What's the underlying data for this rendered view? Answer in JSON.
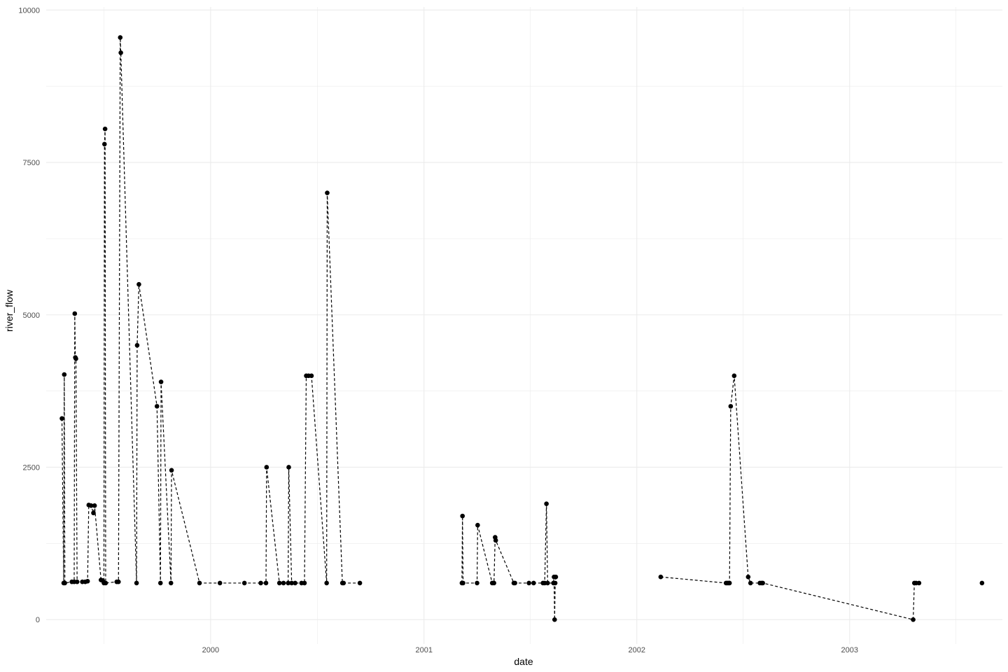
{
  "chart_data": {
    "type": "line",
    "title": "",
    "xlabel": "date",
    "ylabel": "river_flow",
    "x_type": "date",
    "xlim": [
      "1999-03-25",
      "2003-09-20"
    ],
    "ylim": [
      -400,
      10050
    ],
    "x_ticks": [
      {
        "date": "2000-01-01",
        "label": "2000"
      },
      {
        "date": "2001-01-01",
        "label": "2001"
      },
      {
        "date": "2002-01-01",
        "label": "2002"
      },
      {
        "date": "2003-01-01",
        "label": "2003"
      }
    ],
    "y_ticks": [
      {
        "value": 0,
        "label": "0"
      },
      {
        "value": 2500,
        "label": "2500"
      },
      {
        "value": 5000,
        "label": "5000"
      },
      {
        "value": 7500,
        "label": "7500"
      },
      {
        "value": 10000,
        "label": "10000"
      }
    ],
    "grid": true,
    "line_style": "dashed",
    "colors": {
      "line": "#000000",
      "point": "#000000",
      "grid": "#ebebeb"
    },
    "series": [
      {
        "points": [
          [
            "1999-04-21",
            3300
          ],
          [
            "1999-04-24",
            600
          ],
          [
            "1999-04-25",
            4020
          ],
          [
            "1999-04-26",
            600
          ],
          [
            "1999-05-08",
            620
          ],
          [
            "1999-05-12",
            620
          ],
          [
            "1999-05-13",
            5020
          ],
          [
            "1999-05-14",
            4300
          ],
          [
            "1999-05-15",
            4280
          ],
          [
            "1999-05-17",
            620
          ],
          [
            "1999-05-26",
            620
          ],
          [
            "1999-05-31",
            620
          ],
          [
            "1999-06-04",
            630
          ],
          [
            "1999-06-06",
            1880
          ],
          [
            "1999-06-10",
            1870
          ],
          [
            "1999-06-14",
            1750
          ],
          [
            "1999-06-16",
            1870
          ],
          [
            "1999-06-27",
            650
          ],
          [
            "1999-06-30",
            640
          ],
          [
            "1999-07-02",
            600
          ],
          [
            "1999-07-03",
            7800
          ],
          [
            "1999-07-04",
            8050
          ],
          [
            "1999-07-05",
            600
          ],
          [
            "1999-07-24",
            620
          ],
          [
            "1999-07-27",
            620
          ],
          [
            "1999-07-30",
            9550
          ],
          [
            "1999-07-31",
            9300
          ],
          [
            "1999-08-27",
            600
          ],
          [
            "1999-08-28",
            4500
          ],
          [
            "1999-08-31",
            5500
          ],
          [
            "1999-10-01",
            3500
          ],
          [
            "1999-10-07",
            600
          ],
          [
            "1999-10-08",
            3900
          ],
          [
            "1999-10-25",
            600
          ],
          [
            "1999-10-26",
            2450
          ],
          [
            "1999-12-13",
            600
          ],
          [
            "2000-01-17",
            600
          ],
          [
            "2000-02-28",
            600
          ],
          [
            "2000-03-27",
            600
          ],
          [
            "2000-04-05",
            600
          ],
          [
            "2000-04-06",
            2500
          ],
          [
            "2000-04-28",
            600
          ],
          [
            "2000-05-05",
            600
          ],
          [
            "2000-05-13",
            600
          ],
          [
            "2000-05-14",
            2500
          ],
          [
            "2000-05-19",
            600
          ],
          [
            "2000-05-25",
            600
          ],
          [
            "2000-06-05",
            600
          ],
          [
            "2000-06-10",
            600
          ],
          [
            "2000-06-13",
            4000
          ],
          [
            "2000-06-17",
            4000
          ],
          [
            "2000-06-22",
            4000
          ],
          [
            "2000-07-18",
            600
          ],
          [
            "2000-07-19",
            7000
          ],
          [
            "2000-08-14",
            600
          ],
          [
            "2000-08-16",
            600
          ],
          [
            "2000-09-13",
            600
          ]
        ]
      },
      {
        "points": [
          [
            "2001-03-07",
            600
          ],
          [
            "2001-03-08",
            1700
          ],
          [
            "2001-03-09",
            600
          ],
          [
            "2001-04-02",
            600
          ],
          [
            "2001-04-03",
            1550
          ],
          [
            "2001-04-28",
            600
          ],
          [
            "2001-05-01",
            600
          ],
          [
            "2001-05-03",
            1350
          ],
          [
            "2001-05-04",
            1300
          ],
          [
            "2001-06-04",
            600
          ],
          [
            "2001-06-06",
            600
          ],
          [
            "2001-06-30",
            600
          ],
          [
            "2001-07-08",
            600
          ],
          [
            "2001-07-24",
            600
          ],
          [
            "2001-07-27",
            600
          ],
          [
            "2001-07-30",
            1900
          ],
          [
            "2001-08-01",
            600
          ],
          [
            "2001-08-11",
            600
          ],
          [
            "2001-08-12",
            700
          ],
          [
            "2001-08-13",
            0
          ],
          [
            "2001-08-14",
            600
          ],
          [
            "2001-08-15",
            700
          ]
        ]
      },
      {
        "points": [
          [
            "2002-02-11",
            700
          ],
          [
            "2002-06-03",
            600
          ],
          [
            "2002-06-05",
            600
          ],
          [
            "2002-06-07",
            600
          ],
          [
            "2002-06-09",
            600
          ],
          [
            "2002-06-11",
            3500
          ],
          [
            "2002-06-17",
            4000
          ],
          [
            "2002-07-11",
            700
          ],
          [
            "2002-07-15",
            600
          ],
          [
            "2002-07-31",
            600
          ],
          [
            "2002-08-03",
            600
          ],
          [
            "2002-08-05",
            600
          ],
          [
            "2003-04-20",
            0
          ],
          [
            "2003-04-22",
            600
          ],
          [
            "2003-04-25",
            600
          ],
          [
            "2003-04-30",
            600
          ]
        ]
      },
      {
        "points": [
          [
            "2003-08-16",
            600
          ]
        ]
      }
    ]
  }
}
